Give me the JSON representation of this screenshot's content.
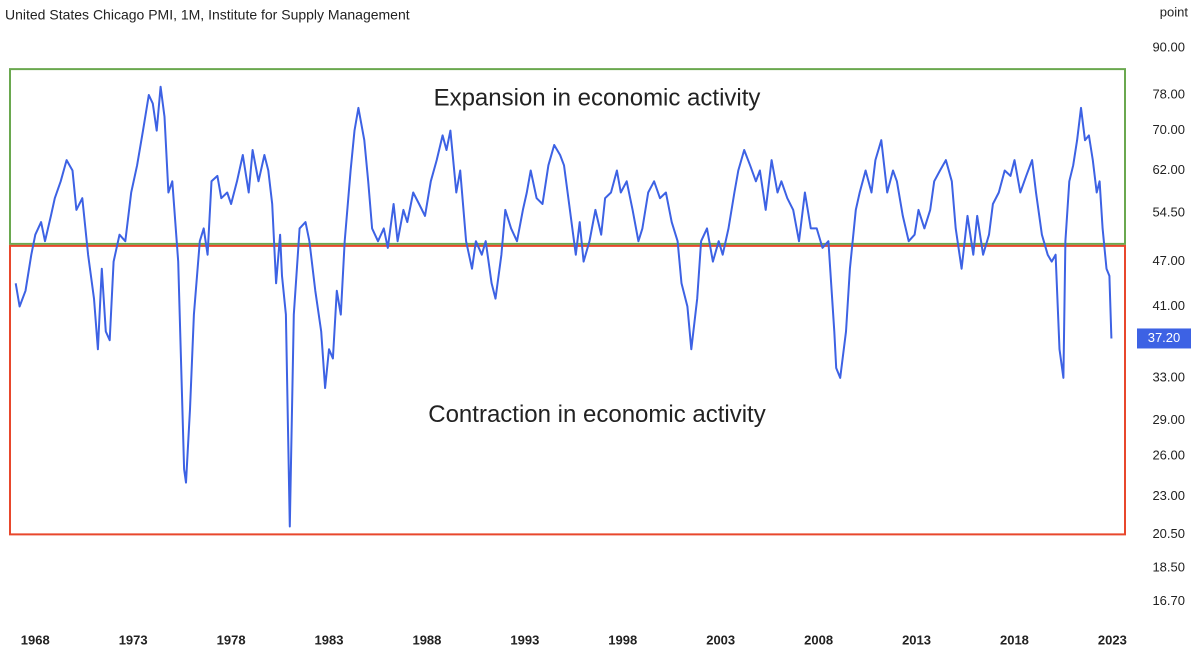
{
  "chart_data": {
    "type": "line",
    "title": "United States Chicago PMI, 1M, Institute for Supply Management",
    "y_label": "point",
    "color": "#3d62e4",
    "log_scale": true,
    "x": [
      1967.0,
      1967.2,
      1967.5,
      1967.8,
      1968.0,
      1968.3,
      1968.5,
      1968.8,
      1969.0,
      1969.3,
      1969.6,
      1969.9,
      1970.1,
      1970.4,
      1970.7,
      1971.0,
      1971.2,
      1971.4,
      1971.6,
      1971.8,
      1972.0,
      1972.3,
      1972.6,
      1972.9,
      1973.2,
      1973.5,
      1973.8,
      1974.0,
      1974.2,
      1974.4,
      1974.6,
      1974.8,
      1975.0,
      1975.3,
      1975.6,
      1975.7,
      1975.9,
      1976.1,
      1976.4,
      1976.6,
      1976.8,
      1977.0,
      1977.3,
      1977.5,
      1977.8,
      1978.0,
      1978.3,
      1978.6,
      1978.9,
      1979.1,
      1979.4,
      1979.7,
      1979.9,
      1980.1,
      1980.3,
      1980.5,
      1980.6,
      1980.8,
      1981.0,
      1981.2,
      1981.5,
      1981.8,
      1982.0,
      1982.3,
      1982.6,
      1982.8,
      1983.0,
      1983.2,
      1983.4,
      1983.6,
      1983.8,
      1984.1,
      1984.3,
      1984.5,
      1984.8,
      1985.0,
      1985.2,
      1985.5,
      1985.8,
      1986.0,
      1986.3,
      1986.5,
      1986.8,
      1987.0,
      1987.3,
      1987.6,
      1987.9,
      1988.2,
      1988.5,
      1988.8,
      1989.0,
      1989.2,
      1989.5,
      1989.7,
      1990.0,
      1990.3,
      1990.5,
      1990.8,
      1991.0,
      1991.3,
      1991.5,
      1991.8,
      1992.0,
      1992.3,
      1992.6,
      1992.9,
      1993.1,
      1993.3,
      1993.6,
      1993.9,
      1994.2,
      1994.5,
      1994.8,
      1995.0,
      1995.3,
      1995.6,
      1995.8,
      1996.0,
      1996.3,
      1996.6,
      1996.9,
      1997.1,
      1997.4,
      1997.7,
      1997.9,
      1998.2,
      1998.5,
      1998.8,
      1999.0,
      1999.3,
      1999.6,
      1999.9,
      2000.2,
      2000.5,
      2000.8,
      2001.0,
      2001.3,
      2001.5,
      2001.8,
      2002.0,
      2002.3,
      2002.6,
      2002.9,
      2003.1,
      2003.4,
      2003.7,
      2003.9,
      2004.2,
      2004.5,
      2004.8,
      2005.0,
      2005.3,
      2005.6,
      2005.9,
      2006.1,
      2006.4,
      2006.7,
      2007.0,
      2007.3,
      2007.6,
      2007.9,
      2008.2,
      2008.5,
      2008.8,
      2008.9,
      2009.1,
      2009.4,
      2009.6,
      2009.9,
      2010.1,
      2010.4,
      2010.7,
      2010.9,
      2011.2,
      2011.5,
      2011.8,
      2012.0,
      2012.3,
      2012.6,
      2012.9,
      2013.1,
      2013.4,
      2013.7,
      2013.9,
      2014.2,
      2014.5,
      2014.8,
      2015.0,
      2015.3,
      2015.6,
      2015.9,
      2016.1,
      2016.4,
      2016.7,
      2016.9,
      2017.2,
      2017.5,
      2017.8,
      2018.0,
      2018.3,
      2018.6,
      2018.9,
      2019.1,
      2019.4,
      2019.7,
      2019.9,
      2020.1,
      2020.3,
      2020.5,
      2020.6,
      2020.8,
      2021.0,
      2021.2,
      2021.4,
      2021.6,
      2021.8,
      2022.0,
      2022.2,
      2022.35,
      2022.5,
      2022.7,
      2022.85,
      2022.95
    ],
    "values": [
      44,
      41,
      43,
      48,
      51,
      53,
      50,
      54,
      57,
      60,
      64,
      62,
      55,
      57,
      48,
      42,
      36,
      46,
      38,
      37,
      47,
      51,
      50,
      58,
      63,
      70,
      78,
      76,
      70,
      80,
      73,
      58,
      60,
      47,
      25,
      24,
      30,
      40,
      50,
      52,
      48,
      60,
      61,
      57,
      58,
      56,
      60,
      65,
      58,
      66,
      60,
      65,
      62,
      56,
      44,
      51,
      45,
      40,
      21,
      40,
      52,
      53,
      50,
      43,
      38,
      32,
      36,
      35,
      43,
      40,
      50,
      62,
      70,
      75,
      68,
      60,
      52,
      50,
      52,
      49,
      56,
      50,
      55,
      53,
      58,
      56,
      54,
      60,
      64,
      69,
      66,
      70,
      58,
      62,
      50,
      46,
      50,
      48,
      50,
      44,
      42,
      48,
      55,
      52,
      50,
      55,
      58,
      62,
      57,
      56,
      63,
      67,
      65,
      63,
      55,
      48,
      53,
      47,
      50,
      55,
      51,
      57,
      58,
      62,
      58,
      60,
      55,
      50,
      52,
      58,
      60,
      57,
      58,
      53,
      50,
      44,
      41,
      36,
      42,
      50,
      52,
      47,
      50,
      48,
      52,
      58,
      62,
      66,
      63,
      60,
      62,
      55,
      64,
      58,
      60,
      57,
      55,
      50,
      58,
      52,
      52,
      49,
      50,
      38,
      34,
      33,
      38,
      46,
      55,
      58,
      62,
      58,
      64,
      68,
      58,
      62,
      60,
      54,
      50,
      51,
      55,
      52,
      55,
      60,
      62,
      64,
      60,
      52,
      46,
      54,
      48,
      54,
      48,
      51,
      56,
      58,
      62,
      61,
      64,
      58,
      61,
      64,
      58,
      51,
      48,
      47,
      48,
      36,
      33,
      50,
      60,
      63,
      68,
      75,
      68,
      69,
      64,
      58,
      60,
      52,
      46,
      45,
      37.2
    ],
    "current_value_label": "37.20",
    "xlim": [
      1966.2,
      2023.9
    ],
    "xticks": [
      1968,
      1973,
      1978,
      1983,
      1988,
      1993,
      1998,
      2003,
      2008,
      2013,
      2018,
      2023
    ],
    "ylim": [
      15.8,
      98
    ],
    "yticks": [
      {
        "value": 90,
        "label": "90.00"
      },
      {
        "value": 78,
        "label": "78.00"
      },
      {
        "value": 70,
        "label": "70.00"
      },
      {
        "value": 62,
        "label": "62.00"
      },
      {
        "value": 54.5,
        "label": "54.50"
      },
      {
        "value": 47,
        "label": "47.00"
      },
      {
        "value": 41,
        "label": "41.00"
      },
      {
        "value": 33,
        "label": "33.00"
      },
      {
        "value": 29,
        "label": "29.00"
      },
      {
        "value": 26,
        "label": "26.00"
      },
      {
        "value": 23,
        "label": "23.00"
      },
      {
        "value": 20.5,
        "label": "20.50"
      },
      {
        "value": 18.5,
        "label": "18.50"
      },
      {
        "value": 16.7,
        "label": "16.70"
      }
    ],
    "regions": [
      {
        "label": "Expansion in economic activity",
        "range": [
          49.6,
          84.4
        ],
        "color": "#6aa84f"
      },
      {
        "label": "Contraction in economic activity",
        "range": [
          20.5,
          49.3
        ],
        "color": "#e8472c"
      }
    ]
  }
}
